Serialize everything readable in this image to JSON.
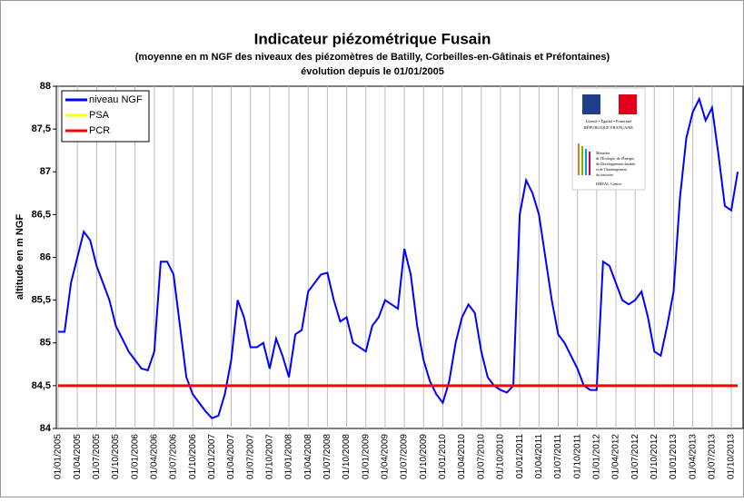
{
  "chart_data": {
    "type": "line",
    "title": "Indicateur piézométrique Fusain",
    "subtitle": "(moyenne en m NGF des niveaux des piézomètres de Batilly, Corbeilles-en-Gâtinais et Préfontaines)",
    "subtitle2": "évolution depuis le 01/01/2005",
    "ylabel": "altitude en m NGF",
    "categories": [
      "01/01/2005",
      null,
      null,
      "01/04/2005",
      null,
      null,
      "01/07/2005",
      null,
      null,
      "01/10/2005",
      null,
      null,
      "01/01/2006",
      null,
      null,
      "01/04/2006",
      null,
      null,
      "01/07/2006",
      null,
      null,
      "01/10/2006",
      null,
      null,
      "01/01/2007",
      null,
      null,
      "01/04/2007",
      null,
      null,
      "01/07/2007",
      null,
      null,
      "01/10/2007",
      null,
      null,
      "01/01/2008",
      null,
      null,
      "01/04/2008",
      null,
      null,
      "01/07/2008",
      null,
      null,
      "01/10/2008",
      null,
      null,
      "01/01/2009",
      null,
      null,
      "01/04/2009",
      null,
      null,
      "01/07/2009",
      null,
      null,
      "01/10/2009",
      null,
      null,
      "01/01/2010",
      null,
      null,
      "01/04/2010",
      null,
      null,
      "01/07/2010",
      null,
      null,
      "01/10/2010",
      null,
      null,
      "01/01/2011",
      null,
      null,
      "01/04/2011",
      null,
      null,
      "01/07/2011",
      null,
      null,
      "01/10/2011",
      null,
      null,
      "01/01/2012",
      null,
      null,
      "01/04/2012",
      null,
      null,
      "01/07/2012",
      null,
      null,
      "01/10/2012",
      null,
      null,
      "01/01/2013",
      null,
      null,
      "01/04/2013",
      null,
      null,
      "01/07/2013",
      null,
      null,
      "01/10/2013",
      null
    ],
    "series": [
      {
        "name": "niveau NGF",
        "color": "#0000ff",
        "values": [
          85.13,
          85.13,
          85.7,
          86.0,
          86.3,
          86.2,
          85.9,
          85.7,
          85.5,
          85.2,
          85.05,
          84.9,
          84.8,
          84.7,
          84.68,
          84.9,
          85.95,
          85.95,
          85.8,
          85.2,
          84.6,
          84.4,
          84.3,
          84.2,
          84.12,
          84.15,
          84.4,
          84.8,
          85.5,
          85.3,
          84.95,
          84.95,
          85.0,
          84.7,
          85.05,
          84.85,
          84.6,
          85.1,
          85.15,
          85.6,
          85.7,
          85.8,
          85.82,
          85.5,
          85.25,
          85.3,
          85.0,
          84.95,
          84.9,
          85.2,
          85.3,
          85.5,
          85.45,
          85.4,
          86.1,
          85.8,
          85.2,
          84.8,
          84.55,
          84.4,
          84.3,
          84.55,
          85.0,
          85.3,
          85.45,
          85.35,
          84.9,
          84.6,
          84.5,
          84.45,
          84.42,
          84.5,
          86.5,
          86.9,
          86.75,
          86.5,
          86.0,
          85.5,
          85.1,
          85.0,
          84.85,
          84.7,
          84.5,
          84.45,
          84.45,
          85.95,
          85.9,
          85.7,
          85.5,
          85.45,
          85.5,
          85.6,
          85.3,
          84.9,
          84.85,
          85.2,
          85.6,
          86.7,
          87.4,
          87.7,
          87.85,
          87.6,
          87.75,
          87.2,
          86.6,
          86.55,
          87.0
        ]
      },
      {
        "name": "PSA",
        "color": "#ffff00",
        "values": [
          null,
          null,
          null,
          null,
          null,
          null,
          null,
          null,
          null,
          null,
          null,
          null,
          null,
          null,
          null,
          null,
          null,
          null,
          null,
          null,
          null,
          null,
          null,
          null,
          null,
          null,
          null,
          null,
          null,
          null,
          null,
          null,
          null,
          null,
          null,
          null,
          null,
          null,
          null,
          null,
          null,
          null,
          null,
          null,
          null,
          null,
          null,
          null,
          null,
          null,
          null,
          null,
          null,
          null,
          null,
          null,
          null,
          null,
          null,
          null,
          null,
          null,
          null,
          null,
          null,
          null,
          null,
          null,
          null,
          null,
          null,
          null,
          null,
          null,
          null,
          null,
          null,
          null,
          null,
          null,
          null,
          null,
          null,
          null,
          null,
          null,
          null,
          null,
          null,
          null,
          null,
          null,
          null,
          null,
          null,
          null,
          null,
          null,
          null,
          null,
          null,
          null,
          null,
          null,
          null,
          null,
          null
        ]
      },
      {
        "name": "PCR",
        "color": "#ff0000",
        "values": [
          84.5,
          84.5,
          84.5,
          84.5,
          84.5,
          84.5,
          84.5,
          84.5,
          84.5,
          84.5,
          84.5,
          84.5,
          84.5,
          84.5,
          84.5,
          84.5,
          84.5,
          84.5,
          84.5,
          84.5,
          84.5,
          84.5,
          84.5,
          84.5,
          84.5,
          84.5,
          84.5,
          84.5,
          84.5,
          84.5,
          84.5,
          84.5,
          84.5,
          84.5,
          84.5,
          84.5,
          84.5,
          84.5,
          84.5,
          84.5,
          84.5,
          84.5,
          84.5,
          84.5,
          84.5,
          84.5,
          84.5,
          84.5,
          84.5,
          84.5,
          84.5,
          84.5,
          84.5,
          84.5,
          84.5,
          84.5,
          84.5,
          84.5,
          84.5,
          84.5,
          84.5,
          84.5,
          84.5,
          84.5,
          84.5,
          84.5,
          84.5,
          84.5,
          84.5,
          84.5,
          84.5,
          84.5,
          84.5,
          84.5,
          84.5,
          84.5,
          84.5,
          84.5,
          84.5,
          84.5,
          84.5,
          84.5,
          84.5,
          84.5,
          84.5,
          84.5,
          84.5,
          84.5,
          84.5,
          84.5,
          84.5,
          84.5,
          84.5,
          84.5,
          84.5,
          84.5,
          84.5,
          84.5,
          84.5,
          84.5,
          84.5,
          84.5,
          84.5,
          84.5,
          84.5,
          84.5,
          84.5
        ]
      }
    ],
    "ylim": [
      84,
      88
    ],
    "yticks": [
      84,
      {
        "value": 84.5,
        "label": "84,5"
      },
      85,
      {
        "value": 85.5,
        "label": "85,5"
      },
      86,
      {
        "value": 86.5,
        "label": "86,5"
      },
      87,
      {
        "value": 87.5,
        "label": "87,5"
      },
      88
    ],
    "grid": "x",
    "legend": "top-left",
    "logo_texts": [
      "Liberté • Égalité • Fraternité",
      "RÉPUBLIQUE FRANÇAISE",
      "Ministère",
      "de l'Écologie, de l'Énergie,",
      "du Développement durable",
      "et de l'Aménagement",
      "du territoire",
      "DREAL Centre"
    ]
  }
}
